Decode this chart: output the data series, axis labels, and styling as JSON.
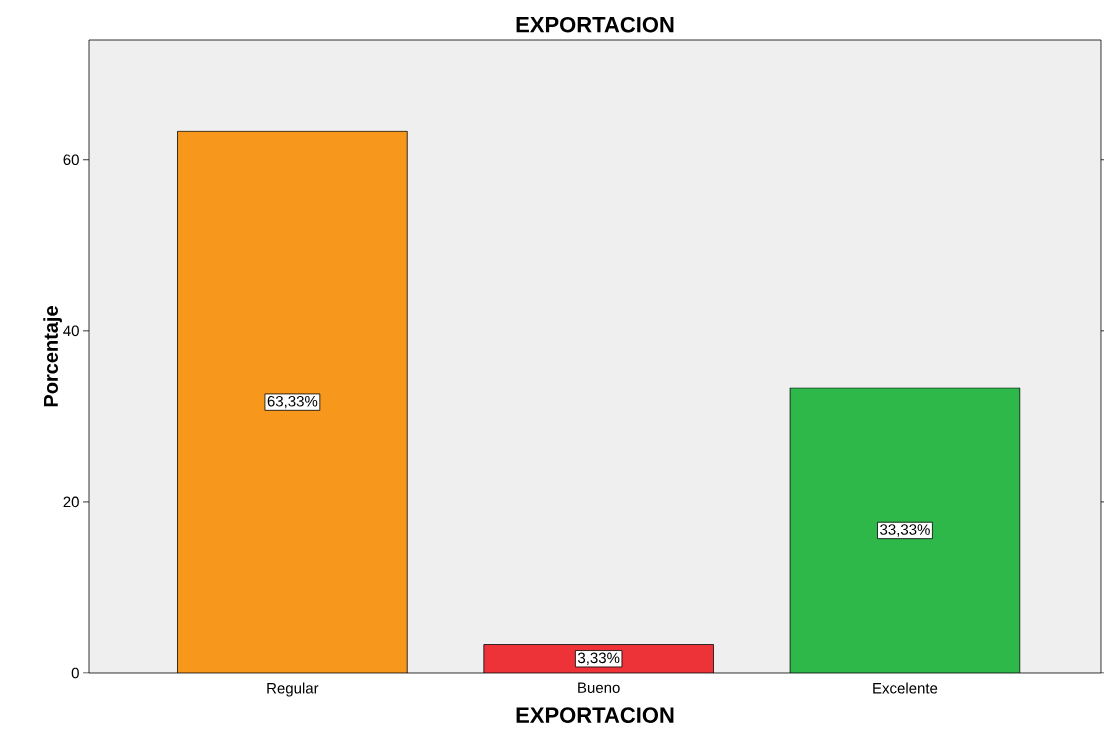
{
  "chart_data": {
    "type": "bar",
    "title": "EXPORTACION",
    "xlabel": "EXPORTACION",
    "ylabel": "Porcentaje",
    "categories": [
      "Regular",
      "Bueno",
      "Excelente"
    ],
    "values": [
      63.33,
      3.33,
      33.33
    ],
    "value_labels": [
      "63,33%",
      "3,33%",
      "33,33%"
    ],
    "colors": [
      "#f7981d",
      "#ee3338",
      "#2fb84a"
    ],
    "ylim": [
      0,
      74
    ],
    "yticks": [
      0,
      20,
      40,
      60
    ],
    "grid": false
  }
}
